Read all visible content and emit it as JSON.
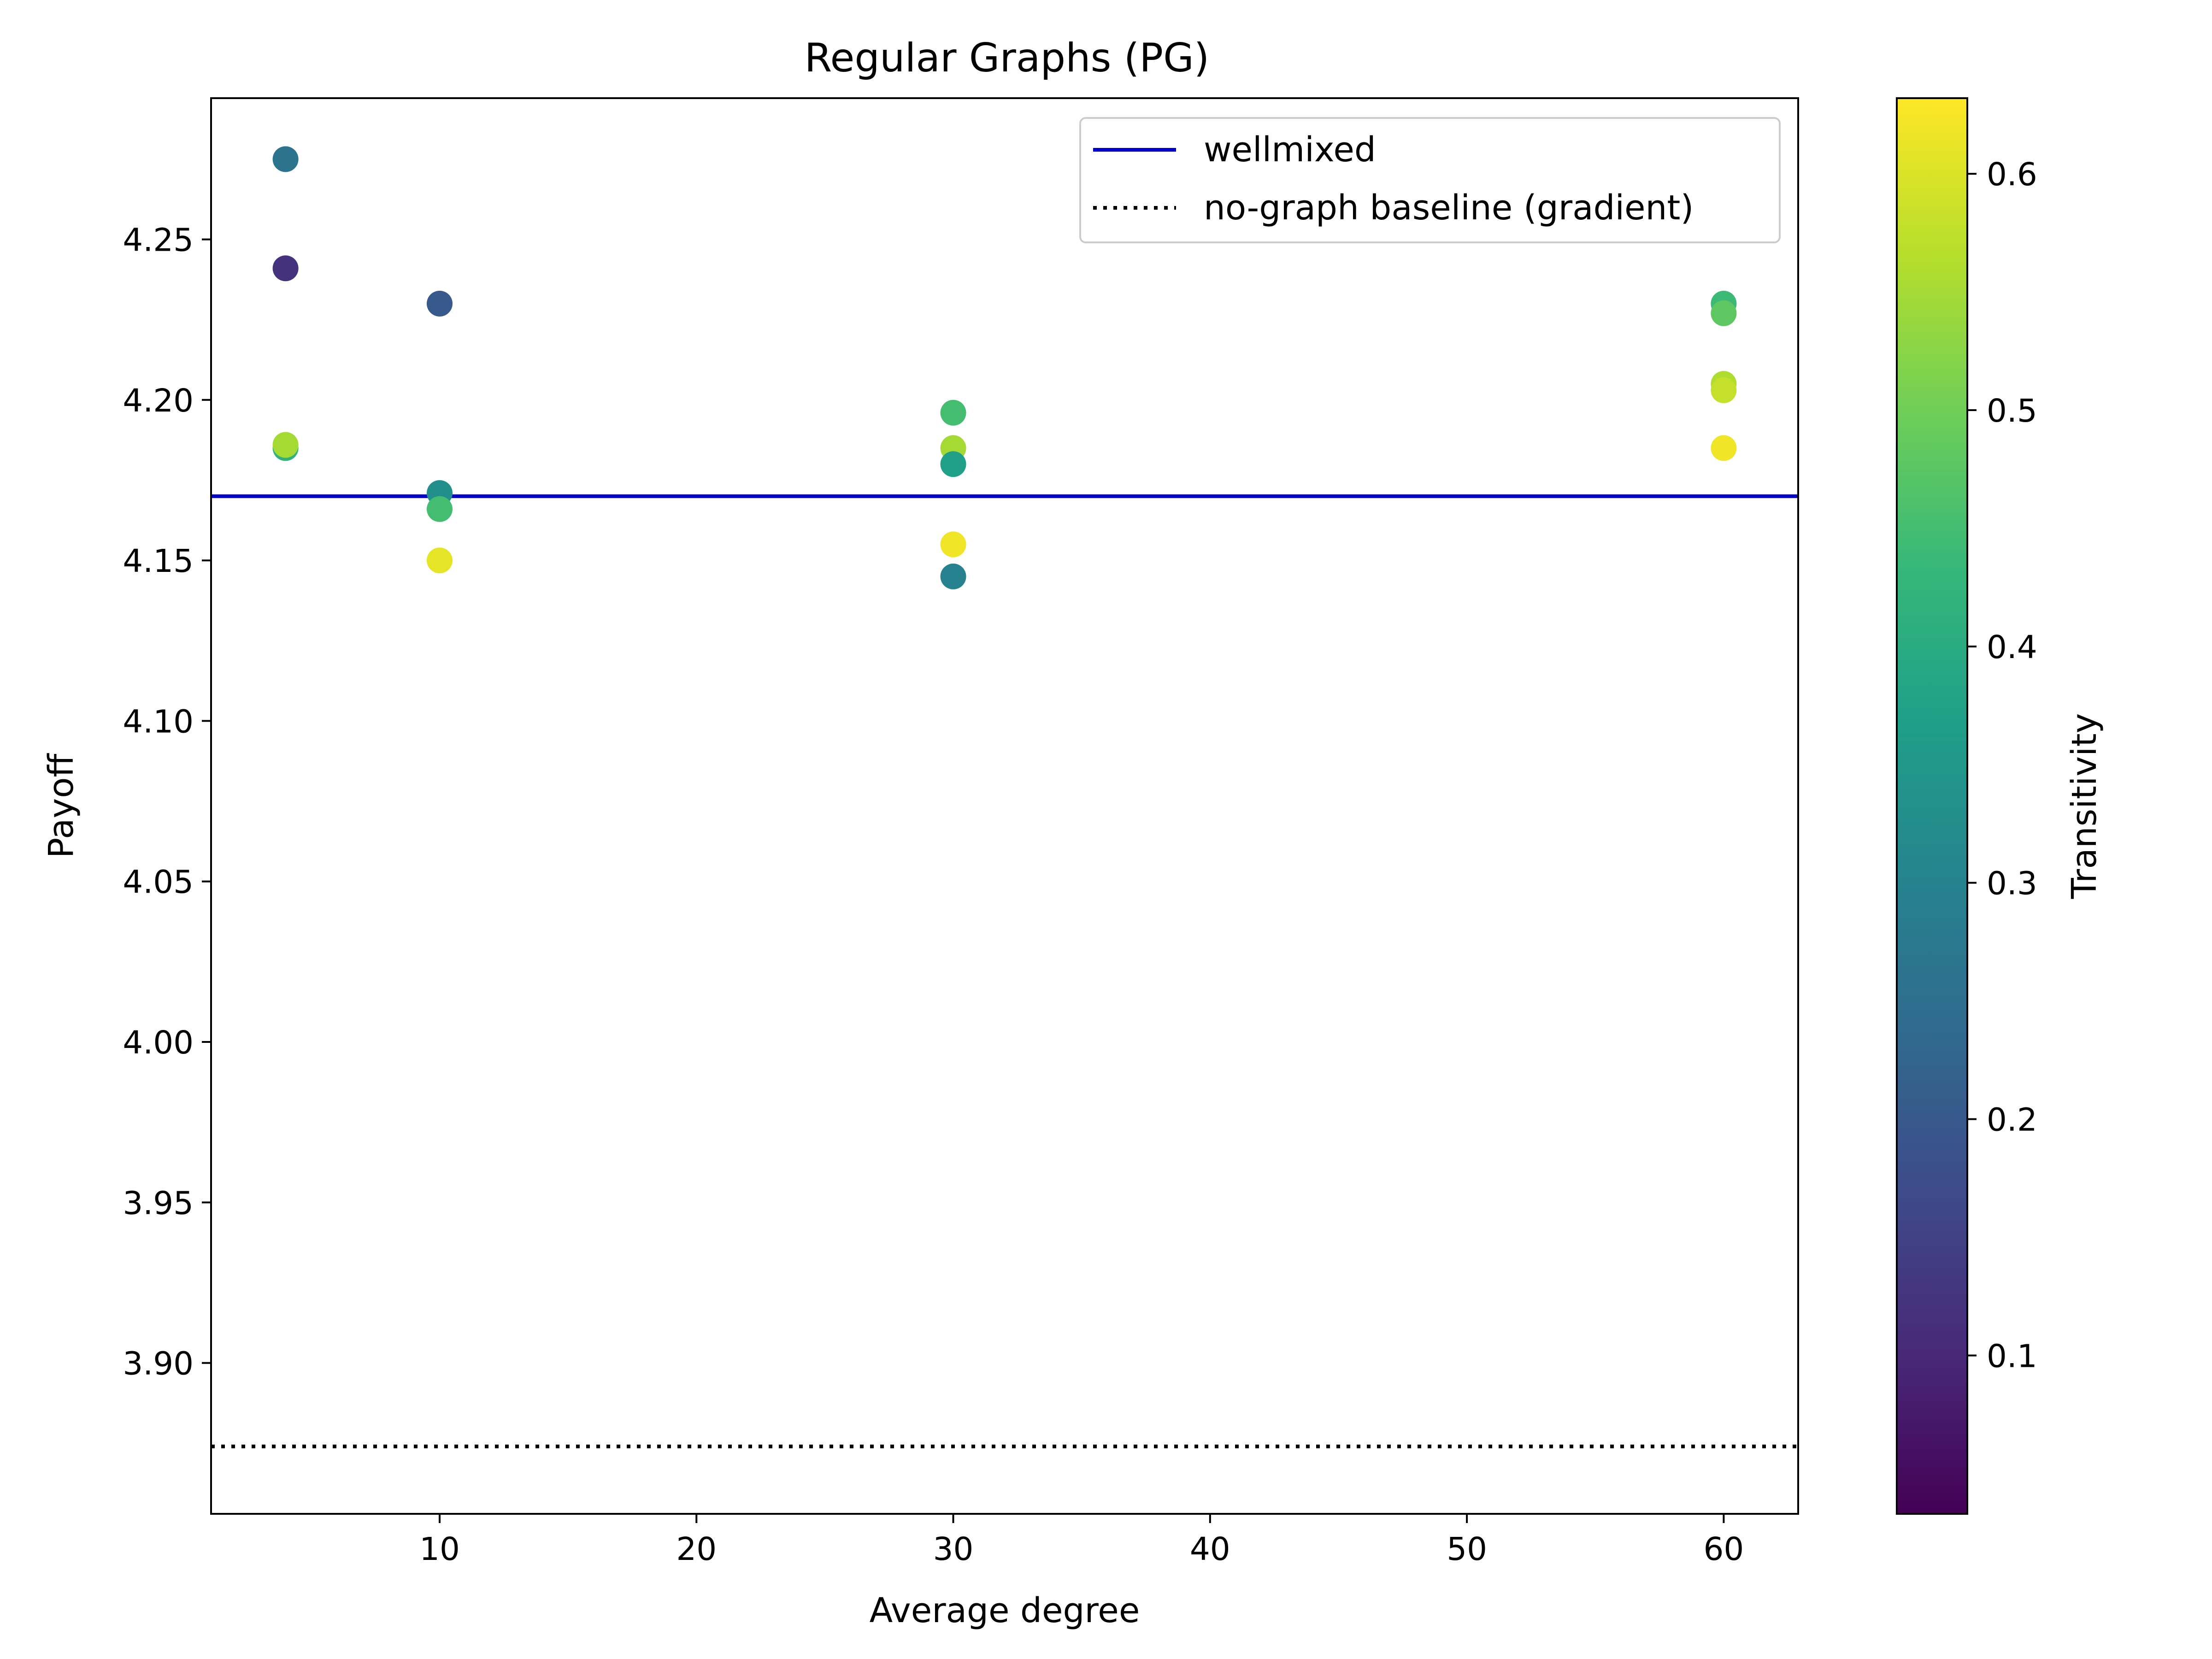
{
  "chart_data": {
    "type": "scatter",
    "title": "Regular Graphs (PG)",
    "xlabel": "Average degree",
    "ylabel": "Payoff",
    "xlim": [
      1.1,
      62.9
    ],
    "ylim": [
      3.853,
      4.294
    ],
    "xticks": [
      10,
      20,
      30,
      40,
      50,
      60
    ],
    "yticks": [
      3.9,
      3.95,
      4.0,
      4.05,
      4.1,
      4.15,
      4.2,
      4.25
    ],
    "grid": false,
    "legend_position": "top-right",
    "colormap": "viridis",
    "colorbar": {
      "label": "Transitivity",
      "range": [
        0.033,
        0.632
      ],
      "ticks": [
        0.1,
        0.2,
        0.3,
        0.4,
        0.5,
        0.6
      ]
    },
    "points": [
      {
        "x": 4,
        "y": 4.275,
        "c": 0.26
      },
      {
        "x": 4,
        "y": 4.241,
        "c": 0.12
      },
      {
        "x": 4,
        "y": 4.185,
        "c": 0.42
      },
      {
        "x": 4,
        "y": 4.186,
        "c": 0.55
      },
      {
        "x": 10,
        "y": 4.23,
        "c": 0.2
      },
      {
        "x": 10,
        "y": 4.171,
        "c": 0.33
      },
      {
        "x": 10,
        "y": 4.166,
        "c": 0.45
      },
      {
        "x": 10,
        "y": 4.15,
        "c": 0.61
      },
      {
        "x": 30,
        "y": 4.196,
        "c": 0.45
      },
      {
        "x": 30,
        "y": 4.185,
        "c": 0.55
      },
      {
        "x": 30,
        "y": 4.18,
        "c": 0.37
      },
      {
        "x": 30,
        "y": 4.155,
        "c": 0.62
      },
      {
        "x": 30,
        "y": 4.145,
        "c": 0.3
      },
      {
        "x": 60,
        "y": 4.23,
        "c": 0.44
      },
      {
        "x": 60,
        "y": 4.227,
        "c": 0.48
      },
      {
        "x": 60,
        "y": 4.205,
        "c": 0.56
      },
      {
        "x": 60,
        "y": 4.203,
        "c": 0.58
      },
      {
        "x": 60,
        "y": 4.185,
        "c": 0.62
      }
    ],
    "reference_lines": [
      {
        "name": "wellmixed",
        "y": 4.17,
        "style": "solid",
        "color": "#0000cc"
      },
      {
        "name": "no-graph baseline (gradient)",
        "y": 3.874,
        "style": "dotted",
        "color": "#000000"
      }
    ]
  }
}
